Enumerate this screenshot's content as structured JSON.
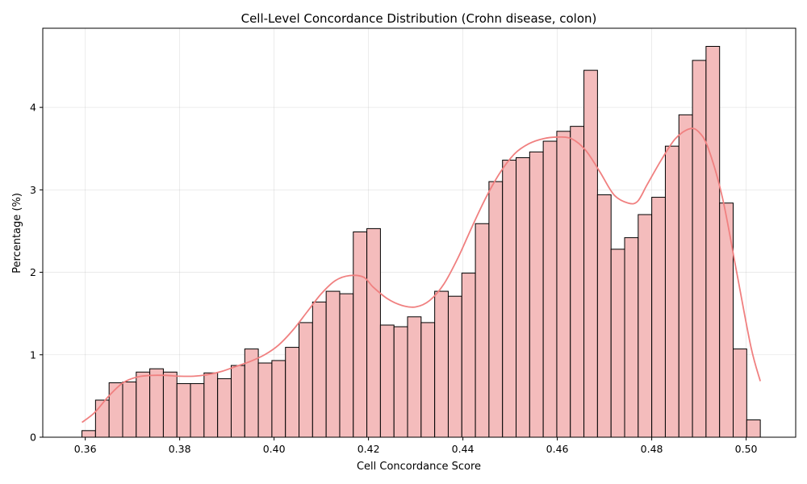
{
  "chart_data": {
    "type": "bar",
    "title": "Cell-Level Concordance Distribution (Crohn disease, colon)",
    "xlabel": "Cell Concordance Score",
    "ylabel": "Percentage (%)",
    "xlim": [
      0.351,
      0.5105
    ],
    "ylim": [
      0,
      4.96
    ],
    "xticks": [
      0.36,
      0.38,
      0.4,
      0.42,
      0.44,
      0.46,
      0.48,
      0.5
    ],
    "xtick_labels": [
      "0.36",
      "0.38",
      "0.40",
      "0.42",
      "0.44",
      "0.46",
      "0.48",
      "0.50"
    ],
    "yticks": [
      0,
      1,
      2,
      3,
      4
    ],
    "ytick_labels": [
      "0",
      "1",
      "2",
      "3",
      "4"
    ],
    "grid": true,
    "bar_color": "#f4bcbc",
    "kde_color": "#f08080",
    "bins": {
      "start": 0.3593,
      "width": 0.002874,
      "values": [
        0.08,
        0.45,
        0.66,
        0.67,
        0.79,
        0.83,
        0.79,
        0.65,
        0.65,
        0.78,
        0.71,
        0.87,
        1.07,
        0.9,
        0.93,
        1.09,
        1.39,
        1.64,
        1.77,
        1.74,
        2.49,
        2.53,
        1.36,
        1.34,
        1.46,
        1.39,
        1.77,
        1.71,
        1.99,
        2.59,
        3.1,
        3.36,
        3.39,
        3.46,
        3.59,
        3.71,
        3.77,
        4.45,
        2.94,
        2.28,
        2.42,
        2.7,
        2.91,
        3.53,
        3.91,
        4.57,
        4.74,
        2.84,
        1.07,
        0.21
      ]
    },
    "kde": {
      "x": [
        0.3593,
        0.362,
        0.365,
        0.368,
        0.371,
        0.374,
        0.377,
        0.38,
        0.383,
        0.386,
        0.389,
        0.392,
        0.395,
        0.398,
        0.401,
        0.404,
        0.407,
        0.41,
        0.413,
        0.416,
        0.419,
        0.421,
        0.424,
        0.427,
        0.43,
        0.433,
        0.436,
        0.439,
        0.442,
        0.445,
        0.448,
        0.451,
        0.454,
        0.457,
        0.46,
        0.463,
        0.466,
        0.469,
        0.472,
        0.475,
        0.477,
        0.479,
        0.482,
        0.485,
        0.488,
        0.49,
        0.492,
        0.495,
        0.498,
        0.501,
        0.503
      ],
      "y": [
        0.18,
        0.3,
        0.5,
        0.66,
        0.73,
        0.75,
        0.75,
        0.74,
        0.74,
        0.76,
        0.8,
        0.86,
        0.92,
        1.0,
        1.12,
        1.3,
        1.52,
        1.74,
        1.9,
        1.96,
        1.94,
        1.82,
        1.68,
        1.6,
        1.58,
        1.66,
        1.86,
        2.18,
        2.56,
        2.92,
        3.22,
        3.44,
        3.56,
        3.62,
        3.64,
        3.62,
        3.48,
        3.22,
        2.94,
        2.84,
        2.86,
        3.06,
        3.36,
        3.62,
        3.74,
        3.7,
        3.5,
        2.9,
        2.0,
        1.1,
        0.68
      ]
    }
  }
}
